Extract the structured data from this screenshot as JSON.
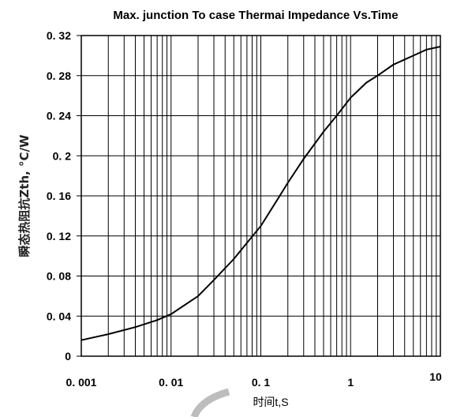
{
  "chart_data": {
    "type": "line",
    "title": "Max. junction To case Thermai Impedance Vs.Time",
    "xlabel": "时间t,S",
    "ylabel": "瞬态热阻抗Zth, °C/W",
    "x_scale": "log",
    "xlim": [
      0.001,
      10
    ],
    "ylim": [
      0,
      0.32
    ],
    "grid": true,
    "x_ticks": [
      0.001,
      0.01,
      0.1,
      1,
      10
    ],
    "x_tick_labels": [
      "0. 001",
      "0. 01",
      "0. 1",
      "1",
      "10"
    ],
    "y_ticks": [
      0,
      0.04,
      0.08,
      0.12,
      0.16,
      0.2,
      0.24,
      0.28,
      0.32
    ],
    "y_tick_labels": [
      "0",
      "0. 04",
      "0. 08",
      "0. 12",
      "0. 16",
      "0. 2",
      "0. 24",
      "0. 28",
      "0. 32"
    ],
    "series": [
      {
        "x": [
          0.001,
          0.002,
          0.004,
          0.007,
          0.01,
          0.02,
          0.03,
          0.05,
          0.1,
          0.15,
          0.2,
          0.3,
          0.5,
          0.7,
          1,
          1.5,
          2,
          3,
          5,
          7,
          10
        ],
        "y": [
          0.016,
          0.022,
          0.029,
          0.036,
          0.042,
          0.06,
          0.076,
          0.097,
          0.13,
          0.155,
          0.173,
          0.197,
          0.224,
          0.24,
          0.258,
          0.273,
          0.28,
          0.291,
          0.3,
          0.306,
          0.309
        ]
      }
    ]
  }
}
